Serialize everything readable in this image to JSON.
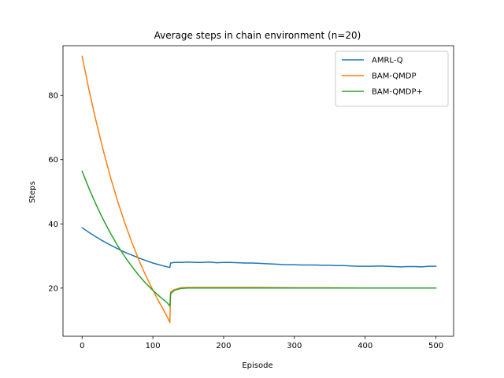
{
  "chart_data": {
    "type": "line",
    "title": "Average steps in chain environment (n=20)",
    "xlabel": "Episode",
    "ylabel": "Steps",
    "xlim": [
      -27,
      525
    ],
    "ylim": [
      5,
      95.5
    ],
    "xticks": [
      0,
      100,
      200,
      300,
      400,
      500
    ],
    "yticks": [
      20,
      40,
      60,
      80
    ],
    "grid": false,
    "legend": "top-right",
    "series": [
      {
        "name": "AMRL-Q",
        "color": "#1f77b4",
        "points": [
          [
            0,
            38.8
          ],
          [
            10,
            37.3
          ],
          [
            20,
            35.9
          ],
          [
            30,
            34.6
          ],
          [
            40,
            33.4
          ],
          [
            50,
            32.3
          ],
          [
            60,
            31.2
          ],
          [
            70,
            30.3
          ],
          [
            80,
            29.4
          ],
          [
            90,
            28.6
          ],
          [
            100,
            27.8
          ],
          [
            110,
            27.2
          ],
          [
            124,
            26.4
          ],
          [
            125,
            27.8
          ],
          [
            130,
            28.0
          ],
          [
            140,
            28.0
          ],
          [
            150,
            28.1
          ],
          [
            160,
            28.0
          ],
          [
            170,
            28.0
          ],
          [
            180,
            28.1
          ],
          [
            190,
            27.9
          ],
          [
            200,
            28.0
          ],
          [
            210,
            28.0
          ],
          [
            220,
            27.9
          ],
          [
            230,
            27.8
          ],
          [
            240,
            27.8
          ],
          [
            250,
            27.7
          ],
          [
            260,
            27.6
          ],
          [
            270,
            27.5
          ],
          [
            280,
            27.4
          ],
          [
            290,
            27.3
          ],
          [
            300,
            27.3
          ],
          [
            310,
            27.2
          ],
          [
            320,
            27.2
          ],
          [
            330,
            27.2
          ],
          [
            340,
            27.1
          ],
          [
            350,
            27.1
          ],
          [
            360,
            27.0
          ],
          [
            370,
            27.0
          ],
          [
            380,
            26.9
          ],
          [
            390,
            26.8
          ],
          [
            400,
            26.8
          ],
          [
            410,
            26.8
          ],
          [
            420,
            26.9
          ],
          [
            430,
            26.8
          ],
          [
            440,
            26.7
          ],
          [
            450,
            26.6
          ],
          [
            460,
            26.7
          ],
          [
            470,
            26.7
          ],
          [
            480,
            26.6
          ],
          [
            490,
            26.8
          ],
          [
            500,
            26.8
          ]
        ]
      },
      {
        "name": "BAM-QMDP",
        "color": "#ff7f0e",
        "points": [
          [
            0,
            92.2
          ],
          [
            10,
            81.5
          ],
          [
            20,
            71.8
          ],
          [
            30,
            62.8
          ],
          [
            40,
            54.6
          ],
          [
            50,
            47.2
          ],
          [
            60,
            40.5
          ],
          [
            70,
            34.4
          ],
          [
            80,
            28.9
          ],
          [
            90,
            23.9
          ],
          [
            100,
            19.4
          ],
          [
            110,
            15.2
          ],
          [
            120,
            11.2
          ],
          [
            124,
            9.3
          ],
          [
            125,
            18.8
          ],
          [
            130,
            19.5
          ],
          [
            140,
            20.1
          ],
          [
            150,
            20.2
          ],
          [
            200,
            20.2
          ],
          [
            250,
            20.2
          ],
          [
            300,
            20.1
          ],
          [
            350,
            20.1
          ],
          [
            400,
            20.0
          ],
          [
            450,
            20.0
          ],
          [
            500,
            20.0
          ]
        ]
      },
      {
        "name": "BAM-QMDP+",
        "color": "#2ca02c",
        "points": [
          [
            0,
            56.4
          ],
          [
            10,
            50.9
          ],
          [
            20,
            45.9
          ],
          [
            30,
            41.3
          ],
          [
            40,
            37.1
          ],
          [
            50,
            33.3
          ],
          [
            60,
            29.9
          ],
          [
            70,
            26.8
          ],
          [
            80,
            24.0
          ],
          [
            90,
            21.5
          ],
          [
            100,
            19.3
          ],
          [
            110,
            17.3
          ],
          [
            120,
            15.5
          ],
          [
            124,
            14.4
          ],
          [
            125,
            18.2
          ],
          [
            130,
            19.3
          ],
          [
            140,
            19.9
          ],
          [
            150,
            20.0
          ],
          [
            200,
            20.0
          ],
          [
            300,
            20.0
          ],
          [
            400,
            20.0
          ],
          [
            500,
            20.0
          ]
        ]
      }
    ]
  }
}
